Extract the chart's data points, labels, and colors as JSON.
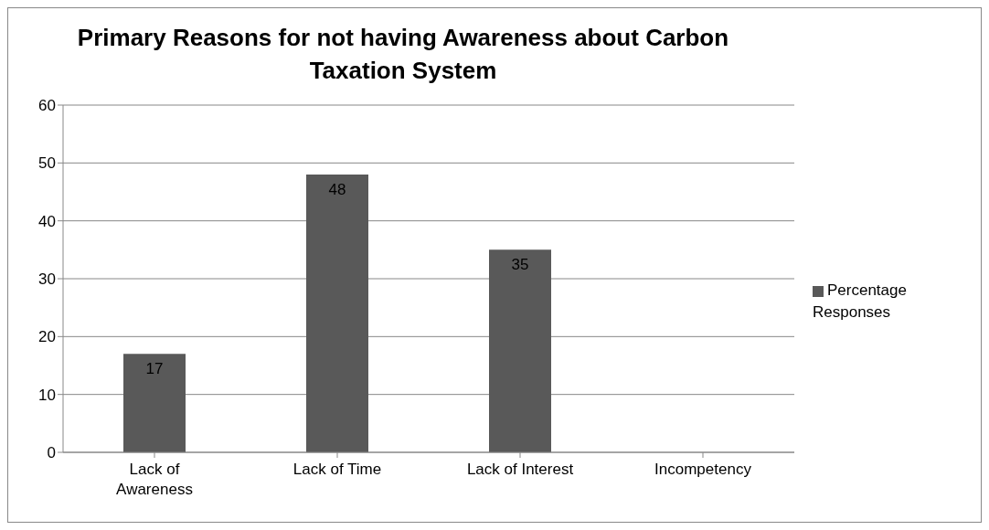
{
  "chart_data": {
    "type": "bar",
    "title": "Primary Reasons for not having Awareness about Carbon Taxation System",
    "categories": [
      "Lack of Awareness",
      "Lack of Time",
      "Lack of Interest",
      "Incompetency"
    ],
    "series": [
      {
        "name": "Percentage Responses",
        "color": "#595959",
        "values": [
          17,
          48,
          35,
          0
        ],
        "value_labels": [
          "17",
          "48",
          "35",
          null
        ]
      }
    ],
    "ylim": [
      0,
      60
    ],
    "yticks": [
      0,
      10,
      20,
      30,
      40,
      50,
      60
    ],
    "grid": "y",
    "legend": "right"
  }
}
